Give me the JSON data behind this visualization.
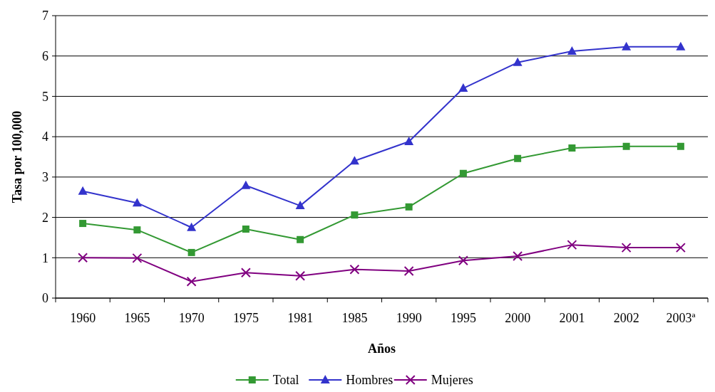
{
  "chart_data": {
    "type": "line",
    "xlabel": "Años",
    "ylabel": "Tasa por 100,000",
    "categories": [
      "1960",
      "1965",
      "1970",
      "1975",
      "1981",
      "1985",
      "1990",
      "1995",
      "2000",
      "2001",
      "2002",
      "2003ª"
    ],
    "series": [
      {
        "name": "Total",
        "color": "#339933",
        "marker": "square",
        "values": [
          1.85,
          1.69,
          1.13,
          1.71,
          1.45,
          2.06,
          2.26,
          3.09,
          3.46,
          3.72,
          3.76,
          3.76
        ]
      },
      {
        "name": "Hombres",
        "color": "#3333cc",
        "marker": "triangle",
        "values": [
          2.65,
          2.36,
          1.75,
          2.79,
          2.29,
          3.4,
          3.88,
          5.2,
          5.84,
          6.12,
          6.23,
          6.23
        ]
      },
      {
        "name": "Mujeres",
        "color": "#800080",
        "marker": "cross",
        "values": [
          1.0,
          0.99,
          0.41,
          0.63,
          0.55,
          0.71,
          0.67,
          0.93,
          1.04,
          1.32,
          1.25,
          1.25
        ]
      }
    ],
    "ylim": [
      0,
      7
    ],
    "yticks": [
      0,
      1,
      2,
      3,
      4,
      5,
      6,
      7
    ],
    "grid": "y",
    "legend": "bottom",
    "line_style": "solid"
  }
}
